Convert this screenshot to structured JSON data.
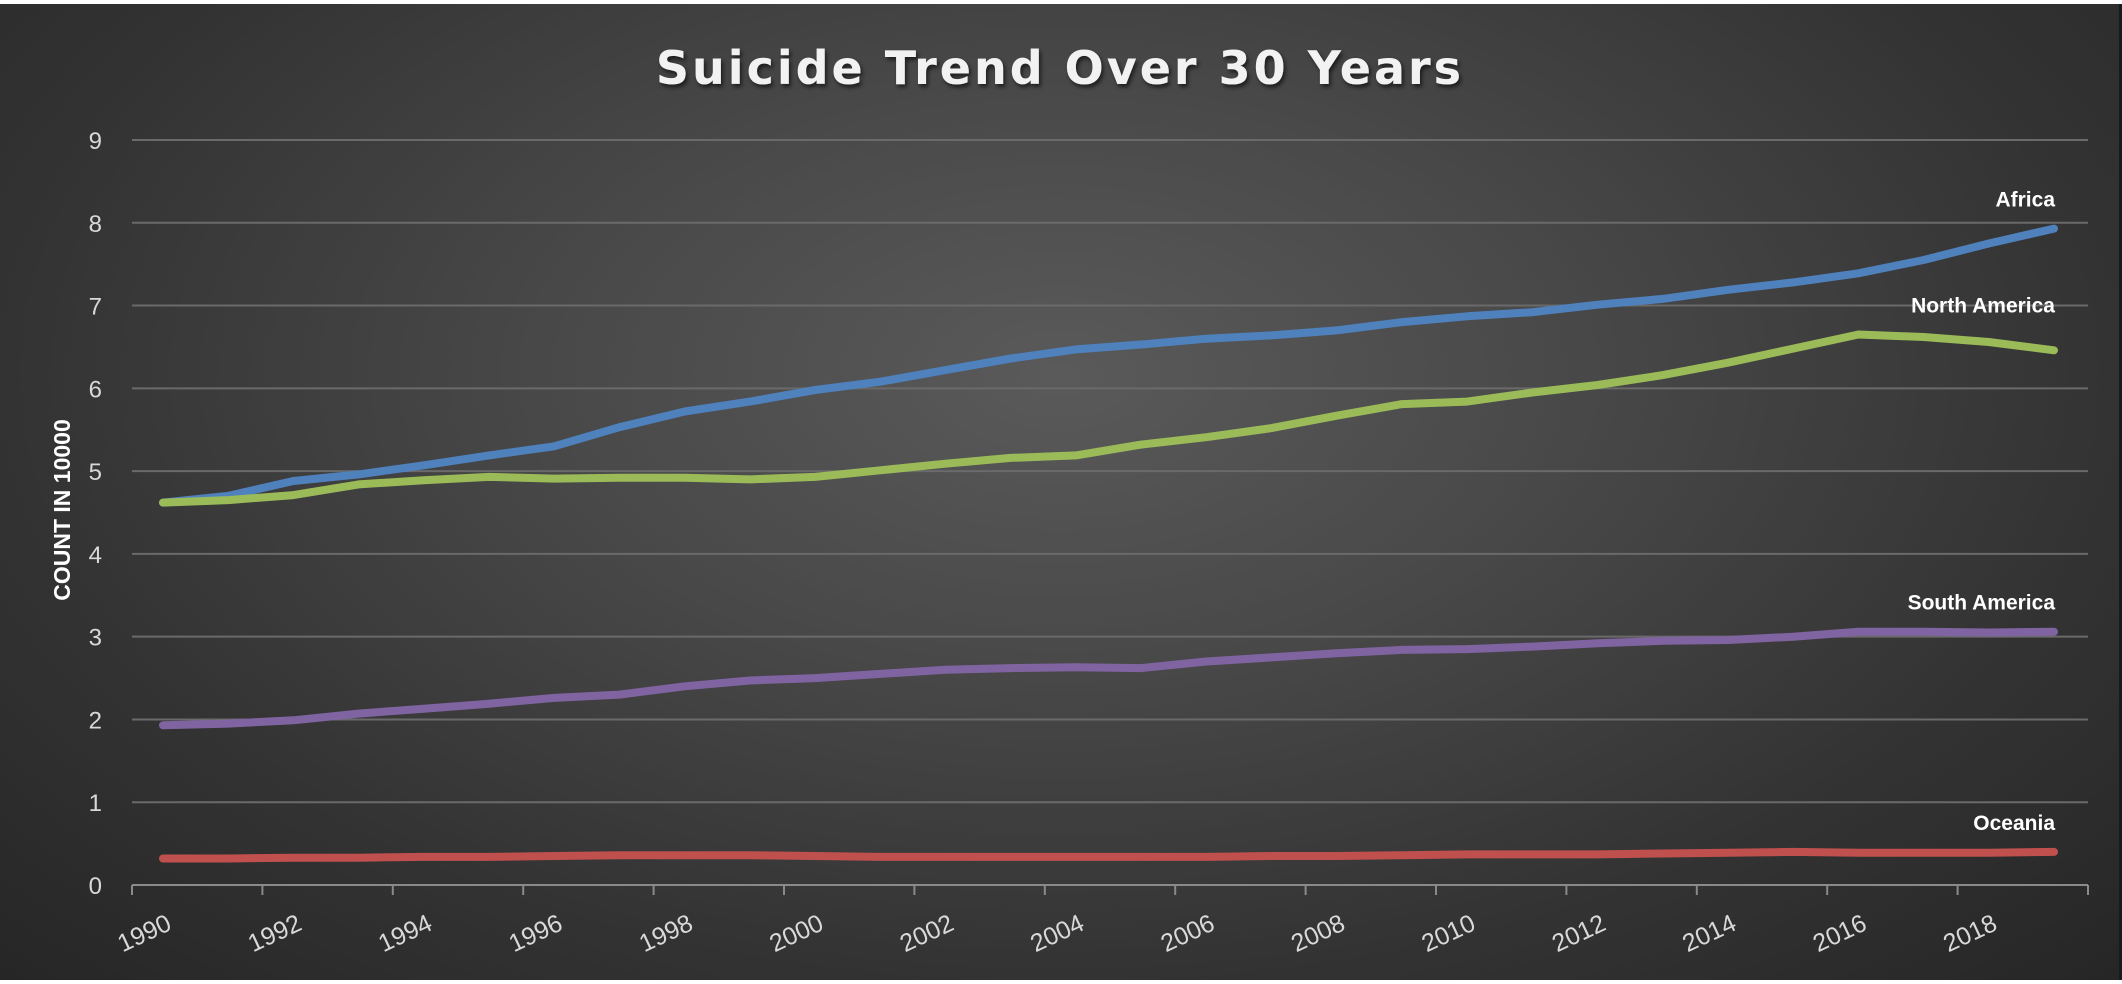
{
  "chart_data": {
    "type": "line",
    "title": "Suicide Trend Over 30 Years",
    "xlabel": "",
    "ylabel": "COUNT IN 10000",
    "ylim": [
      0,
      9
    ],
    "yticks": [
      0,
      1,
      2,
      3,
      4,
      5,
      6,
      7,
      8,
      9
    ],
    "xticks": [
      "1990",
      "1992",
      "1994",
      "1996",
      "1998",
      "2000",
      "2002",
      "2004",
      "2006",
      "2008",
      "2010",
      "2012",
      "2014",
      "2016",
      "2018"
    ],
    "x": [
      1990,
      1991,
      1992,
      1993,
      1994,
      1995,
      1996,
      1997,
      1998,
      1999,
      2000,
      2001,
      2002,
      2003,
      2004,
      2005,
      2006,
      2007,
      2008,
      2009,
      2010,
      2011,
      2012,
      2013,
      2014,
      2015,
      2016,
      2017,
      2018,
      2019
    ],
    "grid": true,
    "legend": "none",
    "series": [
      {
        "name": "Africa",
        "color": "#4f81bd",
        "values": [
          4.62,
          4.7,
          4.88,
          4.96,
          5.07,
          5.19,
          5.3,
          5.53,
          5.72,
          5.84,
          5.98,
          6.08,
          6.22,
          6.36,
          6.47,
          6.53,
          6.6,
          6.64,
          6.7,
          6.8,
          6.87,
          6.92,
          7.01,
          7.08,
          7.19,
          7.28,
          7.39,
          7.55,
          7.75,
          7.93
        ]
      },
      {
        "name": "North America",
        "color": "#9bbb59",
        "values": [
          4.62,
          4.65,
          4.71,
          4.84,
          4.89,
          4.93,
          4.91,
          4.92,
          4.92,
          4.9,
          4.93,
          5.01,
          5.09,
          5.16,
          5.19,
          5.32,
          5.41,
          5.52,
          5.67,
          5.81,
          5.84,
          5.95,
          6.04,
          6.16,
          6.31,
          6.48,
          6.65,
          6.62,
          6.56,
          6.46
        ]
      },
      {
        "name": "South America",
        "color": "#8064a2",
        "values": [
          1.93,
          1.95,
          1.99,
          2.07,
          2.13,
          2.19,
          2.26,
          2.3,
          2.4,
          2.47,
          2.5,
          2.55,
          2.6,
          2.62,
          2.63,
          2.62,
          2.7,
          2.75,
          2.8,
          2.84,
          2.85,
          2.88,
          2.92,
          2.95,
          2.96,
          3.0,
          3.06,
          3.06,
          3.05,
          3.06
        ]
      },
      {
        "name": "Oceania",
        "color": "#c0504d",
        "values": [
          0.32,
          0.32,
          0.33,
          0.33,
          0.34,
          0.34,
          0.35,
          0.36,
          0.36,
          0.36,
          0.35,
          0.34,
          0.34,
          0.34,
          0.34,
          0.34,
          0.34,
          0.35,
          0.35,
          0.36,
          0.37,
          0.37,
          0.37,
          0.38,
          0.39,
          0.4,
          0.39,
          0.39,
          0.39,
          0.4
        ]
      }
    ]
  }
}
